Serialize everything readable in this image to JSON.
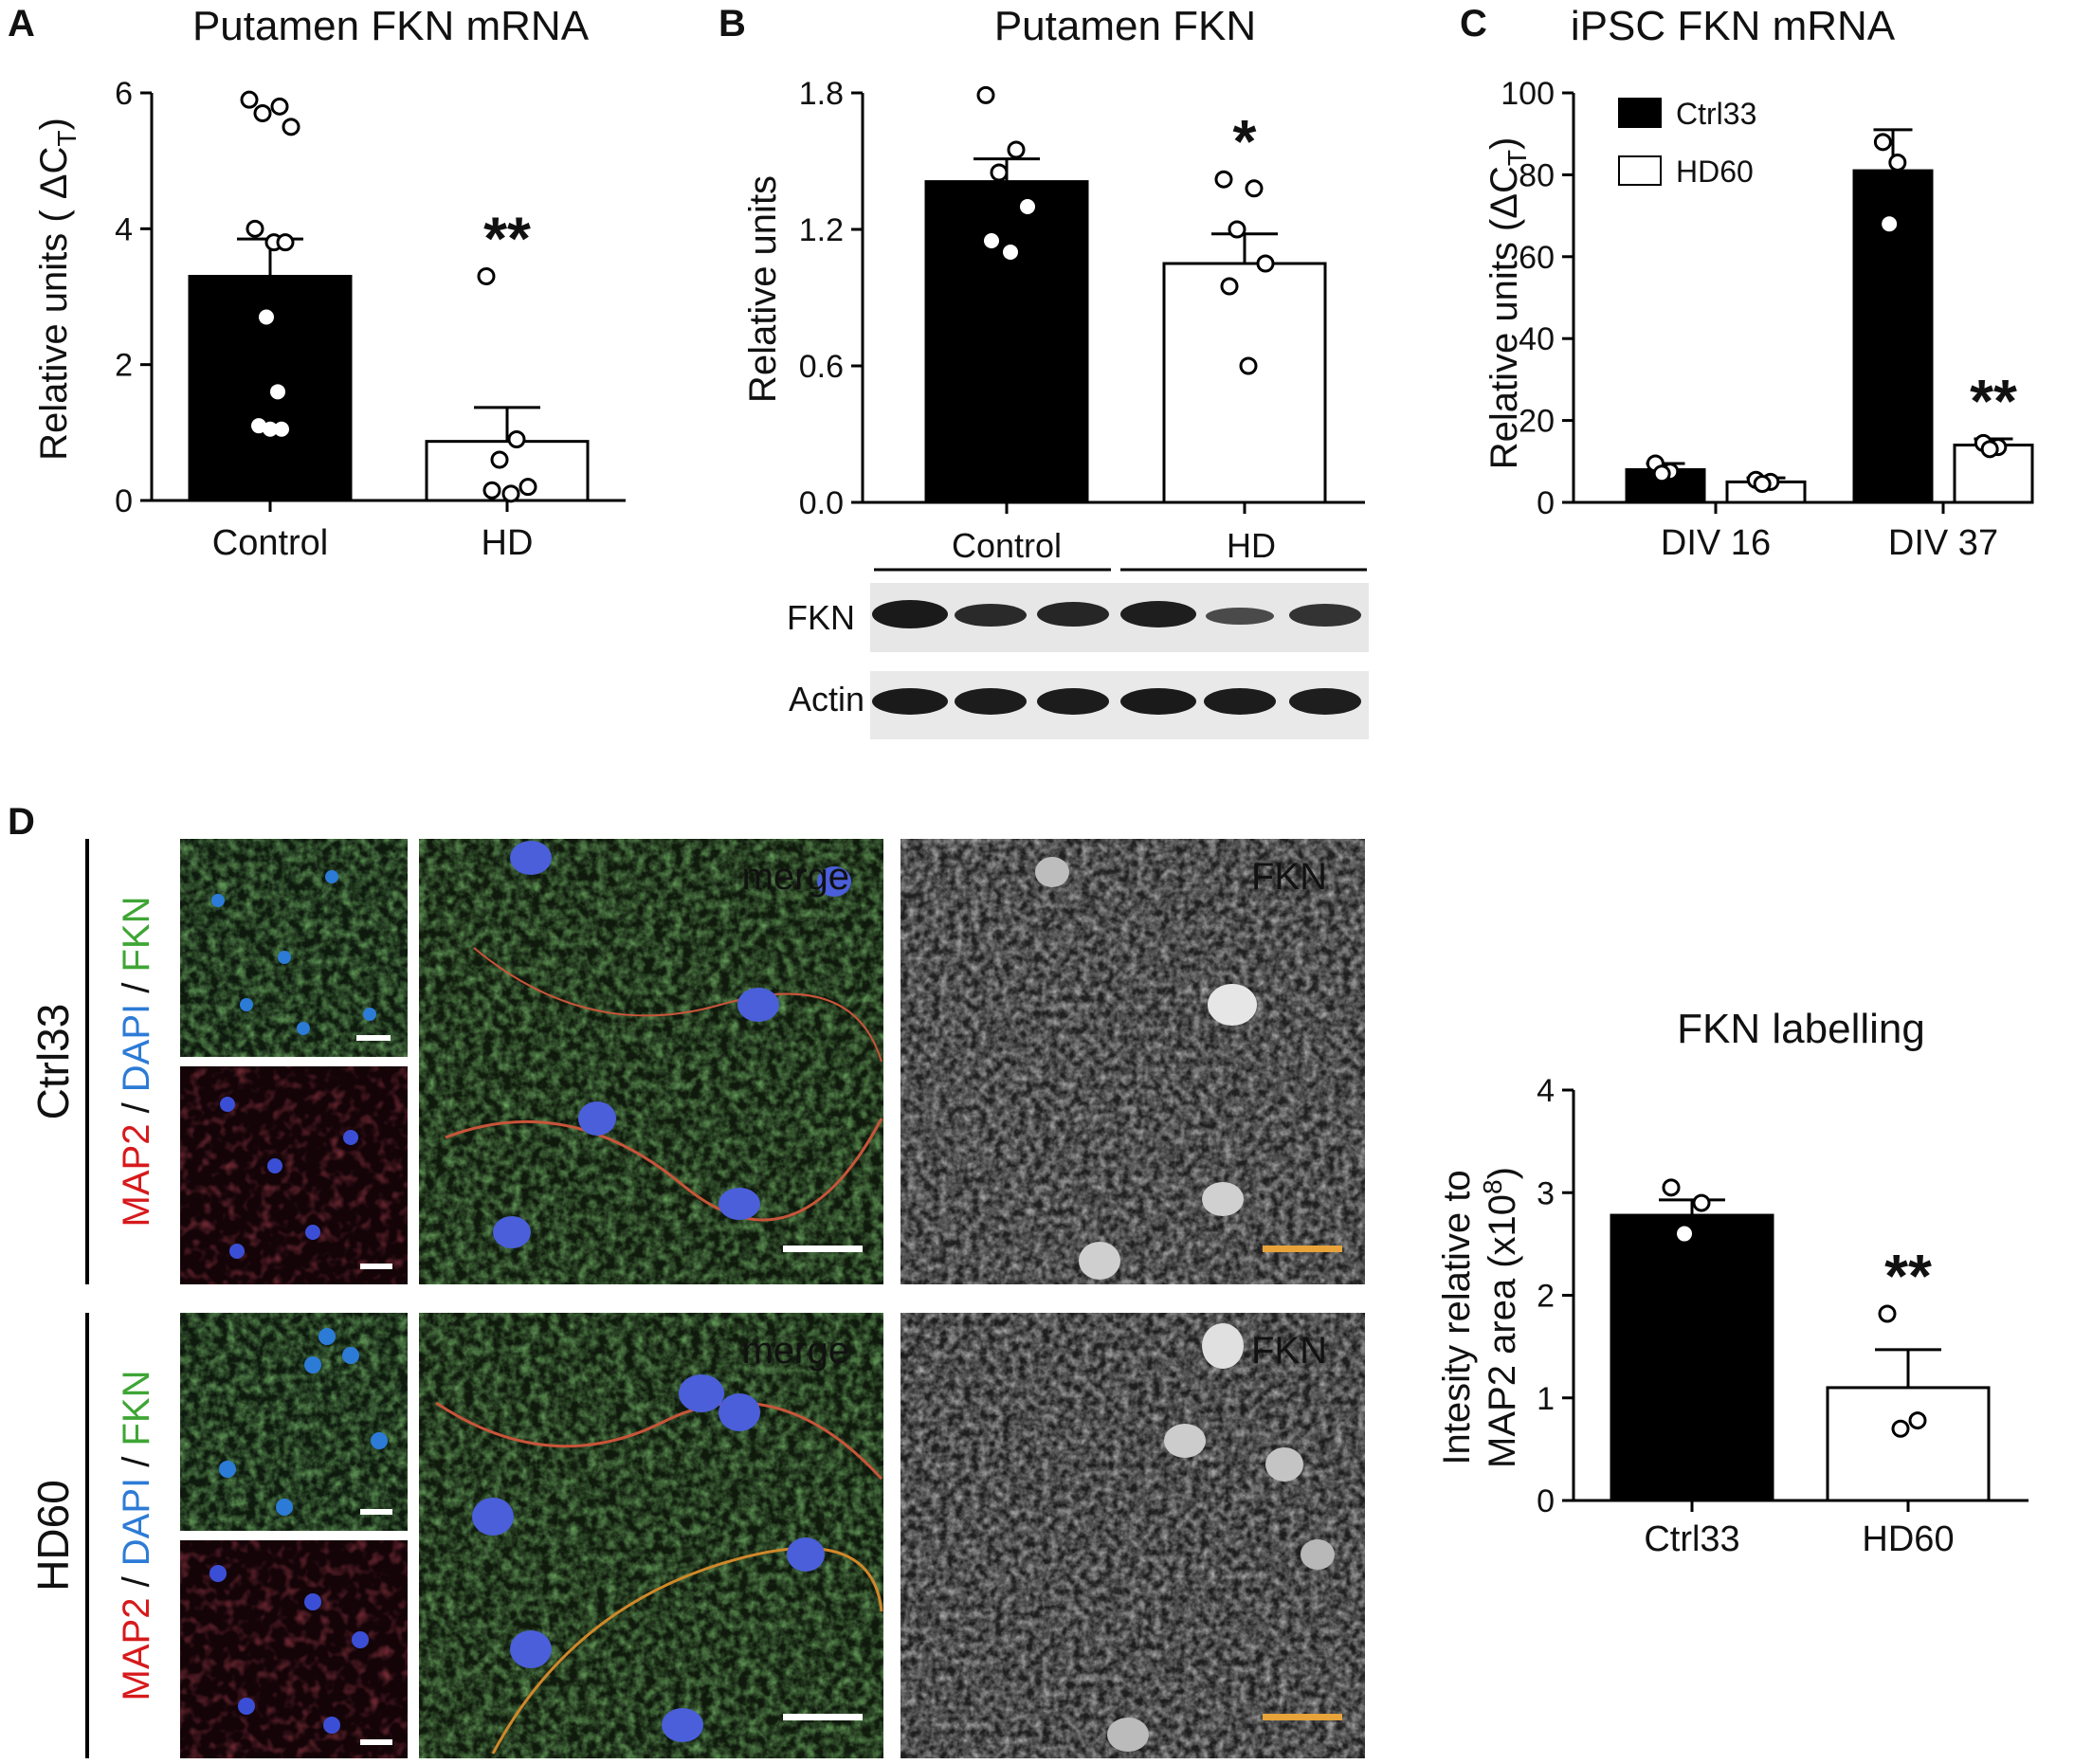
{
  "colors": {
    "black_bar": "#000000",
    "white_bar": "#ffffff",
    "map2": "#d7191c",
    "dapi": "#2c7bd6",
    "fkn_green": "#3fa535",
    "fkn_label": "#e8a33a",
    "scale_white": "#ffffff",
    "scale_yellow": "#e8a33a"
  },
  "panels": {
    "A": "A",
    "B": "B",
    "C": "C",
    "D": "D"
  },
  "chart_data": [
    {
      "id": "A",
      "type": "bar",
      "title": "Putamen FKN mRNA",
      "ylabel": "Relative units ( ΔC",
      "ylabel_sub": "T",
      "ylabel_close": ")",
      "ylim": [
        0,
        6
      ],
      "yticks": [
        0,
        2,
        4,
        6
      ],
      "categories": [
        "Control",
        "HD"
      ],
      "values": [
        3.3,
        0.87
      ],
      "sem": [
        0.55,
        0.5
      ],
      "bar_colors": [
        "#000000",
        "#ffffff"
      ],
      "points": [
        [
          5.9,
          5.8,
          5.7,
          5.5,
          4.0,
          3.8,
          3.8,
          2.7,
          1.6,
          1.1,
          1.05,
          1.05
        ],
        [
          3.3,
          0.9,
          0.6,
          0.2,
          0.15,
          0.1
        ]
      ],
      "significance": [
        "",
        "**"
      ]
    },
    {
      "id": "B",
      "type": "bar",
      "title": "Putamen FKN",
      "ylabel": "Relative units",
      "ylim": [
        0,
        1.8
      ],
      "yticks": [
        "0.0",
        "0.6",
        "1.2",
        "1.8"
      ],
      "categories": [
        "Control",
        "HD"
      ],
      "values": [
        1.41,
        1.05
      ],
      "sem": [
        0.1,
        0.13
      ],
      "bar_colors": [
        "#000000",
        "#ffffff"
      ],
      "points": [
        [
          1.79,
          1.55,
          1.45,
          1.3,
          1.15,
          1.1
        ],
        [
          1.42,
          1.38,
          1.2,
          1.05,
          0.95,
          0.6
        ]
      ],
      "significance": [
        "",
        "*"
      ],
      "blot": {
        "groups": [
          "Control",
          "HD"
        ],
        "rows": [
          "FKN",
          "Actin"
        ]
      }
    },
    {
      "id": "C",
      "type": "bar",
      "title": "iPSC FKN mRNA",
      "ylabel": "Relative units (ΔC",
      "ylabel_sub": "T",
      "ylabel_close": ")",
      "ylim": [
        0,
        100
      ],
      "yticks": [
        0,
        20,
        40,
        60,
        80,
        100
      ],
      "categories": [
        "DIV 16",
        "DIV 37"
      ],
      "series": [
        {
          "name": "Ctrl33",
          "values": [
            8,
            81
          ],
          "sem": [
            1.5,
            10
          ],
          "color": "#000000",
          "points": [
            [
              9.5,
              7.5,
              7
            ],
            [
              88,
              83,
              68
            ]
          ]
        },
        {
          "name": "HD60",
          "values": [
            5,
            14
          ],
          "sem": [
            1,
            1.5
          ],
          "color": "#ffffff",
          "points": [
            [
              5.5,
              5,
              4.5
            ],
            [
              14.5,
              13.5,
              13
            ]
          ]
        }
      ],
      "significance": [
        [
          "",
          ""
        ],
        [
          "",
          "**"
        ]
      ]
    },
    {
      "id": "D",
      "type": "bar",
      "title": "FKN labelling",
      "ylabel_line1": "Intesity relative to",
      "ylabel_line2": "MAP2 area  (x10",
      "ylabel_sup": "8",
      "ylabel_close": ")",
      "ylim": [
        0,
        4
      ],
      "yticks": [
        0,
        1,
        2,
        3,
        4
      ],
      "categories": [
        "Ctrl33",
        "HD60"
      ],
      "values": [
        2.78,
        1.1
      ],
      "sem": [
        0.15,
        0.37
      ],
      "bar_colors": [
        "#000000",
        "#ffffff"
      ],
      "points": [
        [
          3.05,
          2.9,
          2.6
        ],
        [
          1.82,
          0.78,
          0.7
        ]
      ],
      "significance": [
        "",
        "**"
      ]
    }
  ],
  "microscopy": {
    "rows": [
      "Ctrl33",
      "HD60"
    ],
    "stain_map2": "MAP2",
    "stain_dapi": "DAPI",
    "stain_fkn": "FKN",
    "separator": " / ",
    "merge_label": "merge",
    "fkn_label": "FKN"
  }
}
